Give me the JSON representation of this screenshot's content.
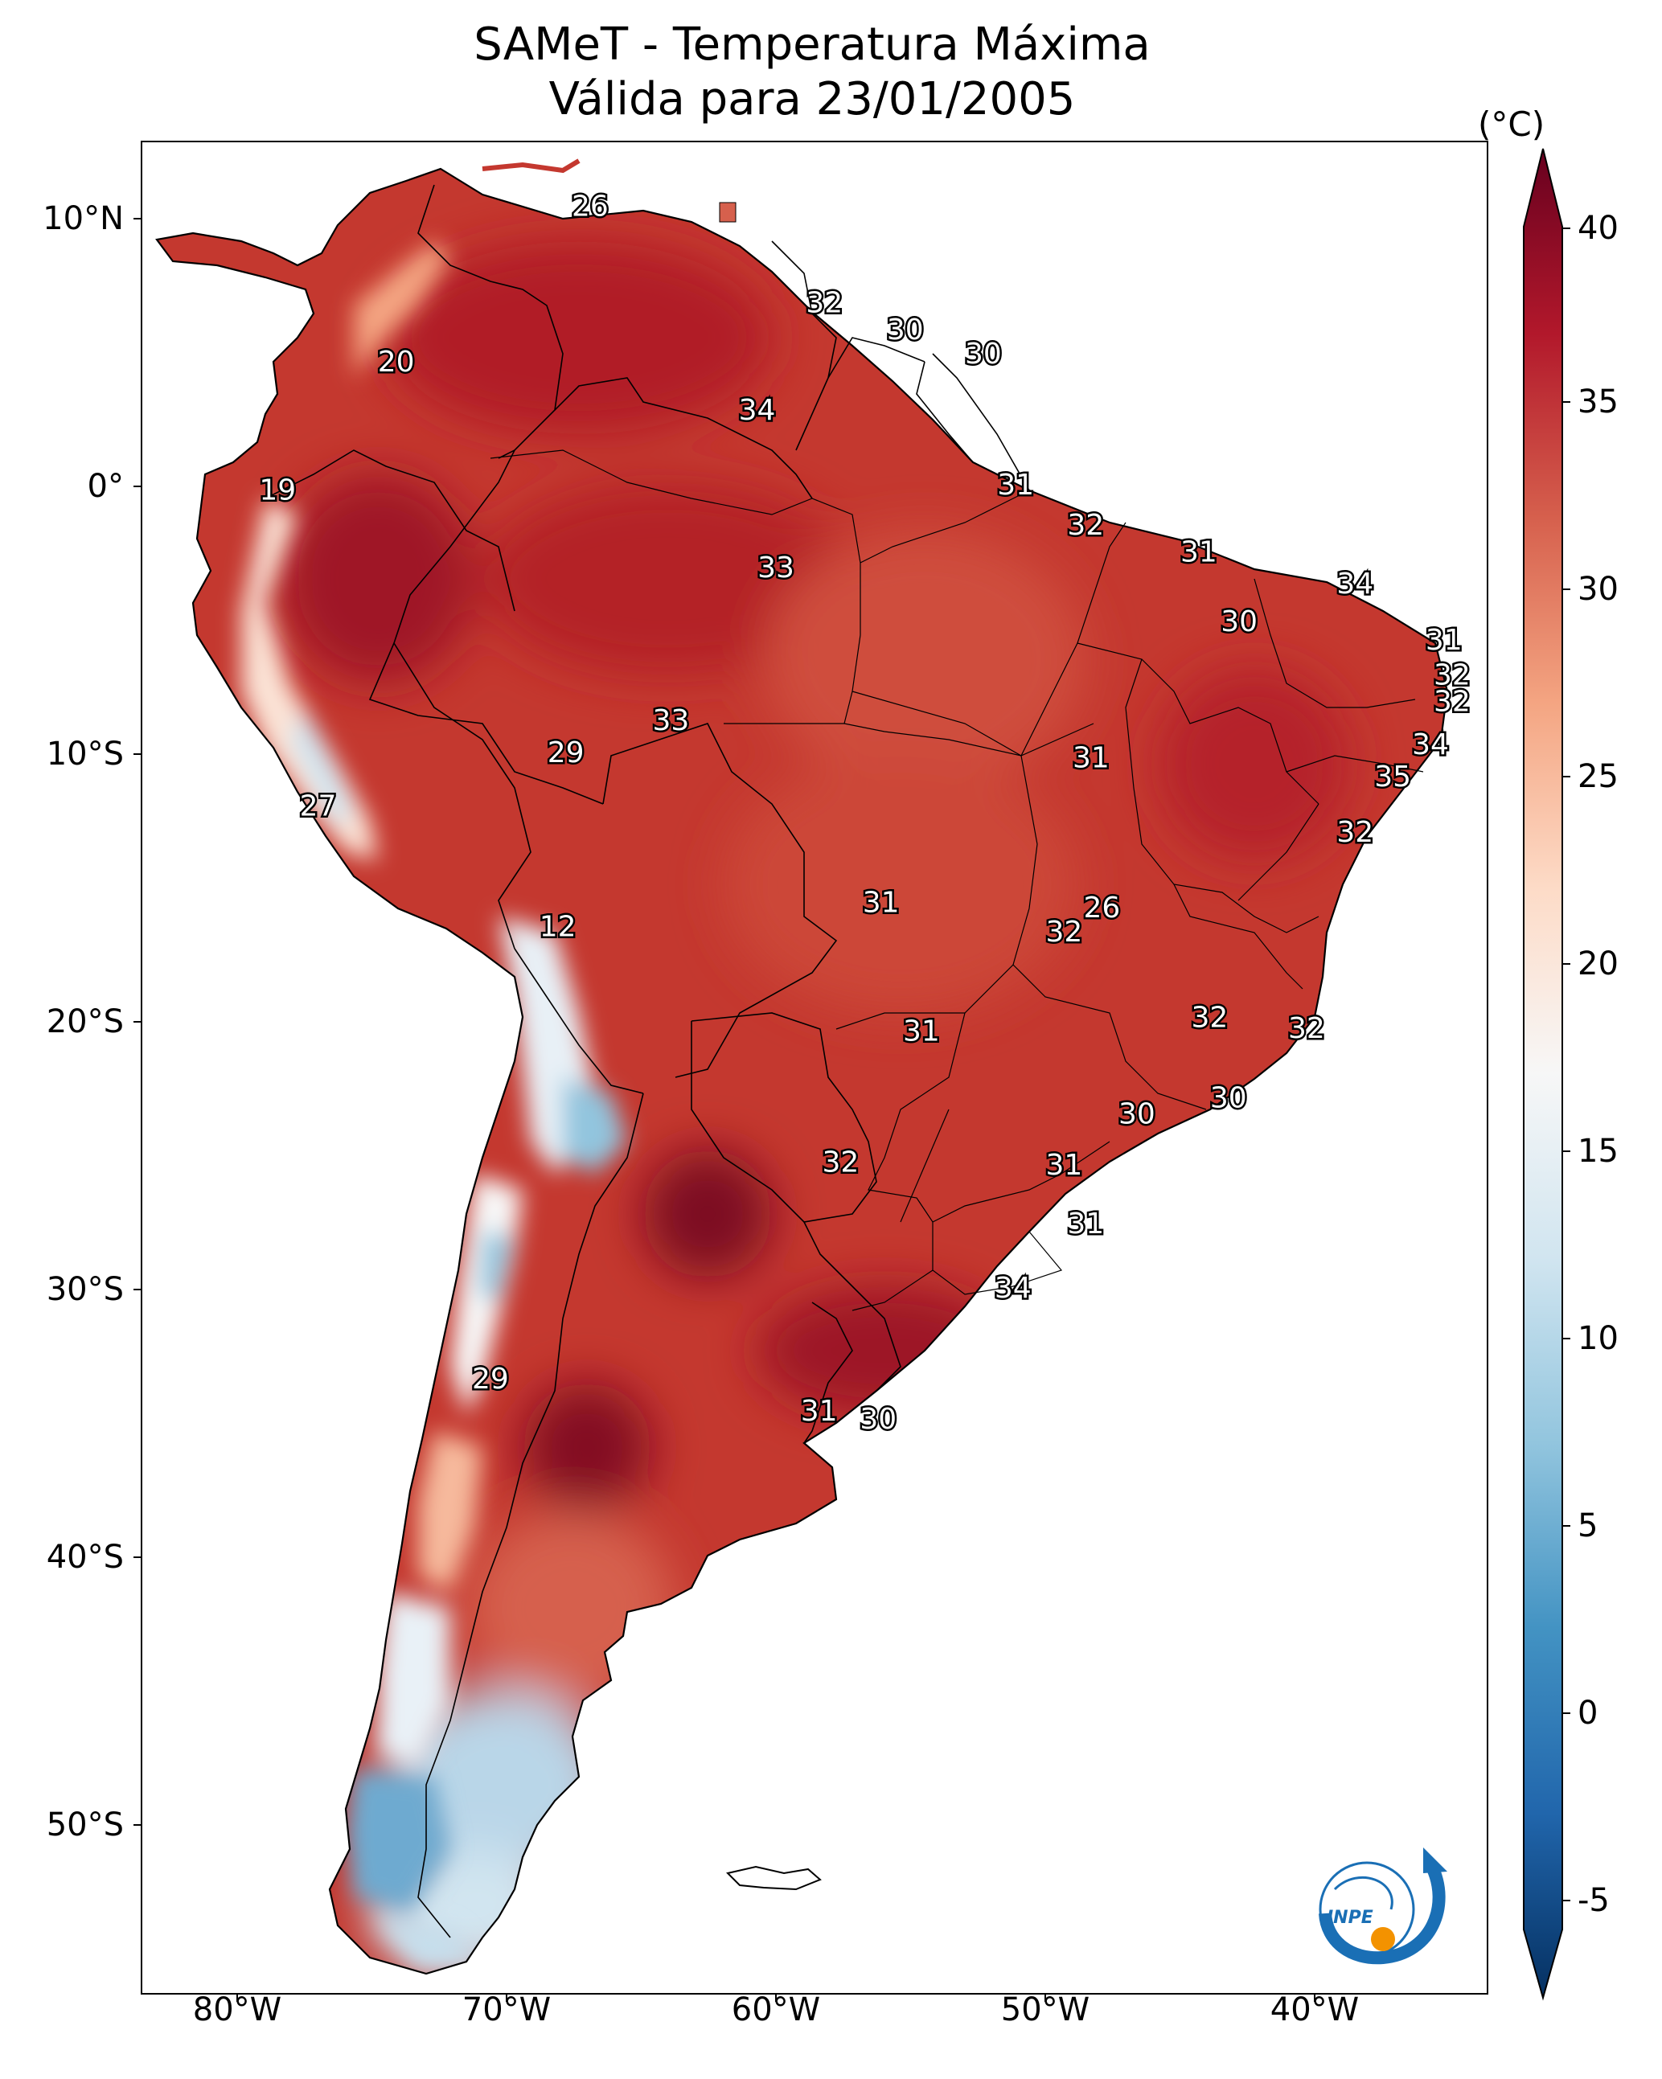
{
  "title": {
    "line1": "SAMeT - Temperatura Máxima",
    "line2": "Válida para 23/01/2005"
  },
  "axes": {
    "lat_ticks": [
      "10°N",
      "0°",
      "10°S",
      "20°S",
      "30°S",
      "40°S",
      "50°S"
    ],
    "lon_ticks": [
      "80°W",
      "70°W",
      "60°W",
      "50°W",
      "40°W"
    ]
  },
  "colorbar": {
    "unit": "(°C)",
    "ticks": [
      "40",
      "35",
      "30",
      "25",
      "20",
      "15",
      "10",
      "5",
      "0",
      "-5"
    ],
    "min": -5,
    "max": 40,
    "colormap": [
      "#053061",
      "#2166ac",
      "#4393c3",
      "#92c5de",
      "#d1e5f0",
      "#f7f7f7",
      "#fddbc7",
      "#f4a582",
      "#d6604d",
      "#b2182b",
      "#67001f"
    ]
  },
  "stations": [
    {
      "label": "26",
      "lat": 10.4,
      "lon": -66.9
    },
    {
      "label": "20",
      "lat": 4.6,
      "lon": -74.1
    },
    {
      "label": "32",
      "lat": 6.8,
      "lon": -58.2
    },
    {
      "label": "30",
      "lat": 5.8,
      "lon": -55.2
    },
    {
      "label": "30",
      "lat": 4.9,
      "lon": -52.3
    },
    {
      "label": "34",
      "lat": 2.8,
      "lon": -60.7
    },
    {
      "label": "19",
      "lat": -0.2,
      "lon": -78.5
    },
    {
      "label": "31",
      "lat": 0.0,
      "lon": -51.1
    },
    {
      "label": "32",
      "lat": -1.5,
      "lon": -48.5
    },
    {
      "label": "31",
      "lat": -2.5,
      "lon": -44.3
    },
    {
      "label": "33",
      "lat": -3.1,
      "lon": -60.0
    },
    {
      "label": "34",
      "lat": -3.7,
      "lon": -38.5
    },
    {
      "label": "30",
      "lat": -5.1,
      "lon": -42.8
    },
    {
      "label": "31",
      "lat": -5.8,
      "lon": -35.2
    },
    {
      "label": "32",
      "lat": -7.1,
      "lon": -34.9
    },
    {
      "label": "32",
      "lat": -8.1,
      "lon": -34.9
    },
    {
      "label": "33",
      "lat": -8.8,
      "lon": -63.9
    },
    {
      "label": "29",
      "lat": -10.0,
      "lon": -67.8
    },
    {
      "label": "31",
      "lat": -10.2,
      "lon": -48.3
    },
    {
      "label": "34",
      "lat": -9.7,
      "lon": -35.7
    },
    {
      "label": "35",
      "lat": -10.9,
      "lon": -37.1
    },
    {
      "label": "27",
      "lat": -12.0,
      "lon": -77.0
    },
    {
      "label": "32",
      "lat": -12.97,
      "lon": -38.5
    },
    {
      "label": "31",
      "lat": -15.6,
      "lon": -56.1
    },
    {
      "label": "26",
      "lat": -15.8,
      "lon": -47.9
    },
    {
      "label": "32",
      "lat": -16.7,
      "lon": -49.3
    },
    {
      "label": "12",
      "lat": -16.5,
      "lon": -68.1
    },
    {
      "label": "31",
      "lat": -20.4,
      "lon": -54.6
    },
    {
      "label": "32",
      "lat": -19.9,
      "lon": -43.9
    },
    {
      "label": "32",
      "lat": -20.3,
      "lon": -40.3
    },
    {
      "label": "30",
      "lat": -22.9,
      "lon": -43.2
    },
    {
      "label": "30",
      "lat": -23.5,
      "lon": -46.6
    },
    {
      "label": "32",
      "lat": -25.3,
      "lon": -57.6
    },
    {
      "label": "31",
      "lat": -25.4,
      "lon": -49.3
    },
    {
      "label": "31",
      "lat": -27.6,
      "lon": -48.5
    },
    {
      "label": "34",
      "lat": -30.0,
      "lon": -51.2
    },
    {
      "label": "29",
      "lat": -33.4,
      "lon": -70.6
    },
    {
      "label": "31",
      "lat": -34.6,
      "lon": -58.4
    },
    {
      "label": "30",
      "lat": -34.9,
      "lon": -56.2
    }
  ]
}
